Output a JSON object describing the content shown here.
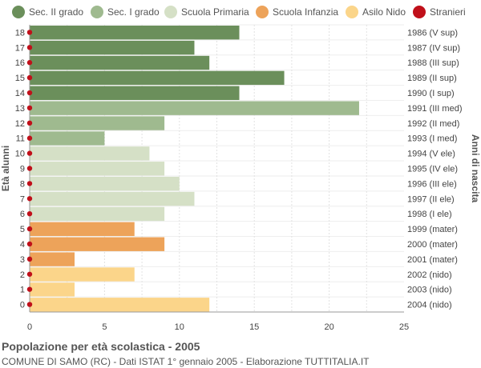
{
  "legend": [
    {
      "label": "Sec. II grado",
      "color": "#6b8f5b"
    },
    {
      "label": "Sec. I grado",
      "color": "#9fba8f"
    },
    {
      "label": "Scuola Primaria",
      "color": "#d5e0c6"
    },
    {
      "label": "Scuola Infanzia",
      "color": "#eda35a"
    },
    {
      "label": "Asilo Nido",
      "color": "#fbd58a"
    },
    {
      "label": "Stranieri",
      "color": "#c0101a"
    }
  ],
  "footer": {
    "title": "Popolazione per età scolastica - 2005",
    "subtitle": "COMUNE DI SAMO (RC) - Dati ISTAT 1° gennaio 2005 - Elaborazione TUTTITALIA.IT"
  },
  "chart_data": {
    "type": "bar",
    "orientation": "horizontal",
    "ylabel": "Età alunni",
    "ylabel_right": "Anni di nascita",
    "xlim": [
      0,
      25
    ],
    "xticks": [
      0,
      5,
      10,
      15,
      20,
      25
    ],
    "grid": true,
    "legend_position": "top",
    "categories": [
      "18",
      "17",
      "16",
      "15",
      "14",
      "13",
      "12",
      "11",
      "10",
      "9",
      "8",
      "7",
      "6",
      "5",
      "4",
      "3",
      "2",
      "1",
      "0"
    ],
    "birth_years": [
      "1986 (V sup)",
      "1987 (IV sup)",
      "1988 (III sup)",
      "1989 (II sup)",
      "1990 (I sup)",
      "1991 (III med)",
      "1992 (II med)",
      "1993 (I med)",
      "1994 (V ele)",
      "1995 (IV ele)",
      "1996 (III ele)",
      "1997 (II ele)",
      "1998 (I ele)",
      "1999 (mater)",
      "2000 (mater)",
      "2001 (mater)",
      "2002 (nido)",
      "2003 (nido)",
      "2004 (nido)"
    ],
    "values": [
      14,
      11,
      12,
      17,
      14,
      22,
      9,
      5,
      8,
      9,
      10,
      11,
      9,
      7,
      9,
      3,
      7,
      3,
      12
    ],
    "groups": [
      "Sec. II grado",
      "Sec. II grado",
      "Sec. II grado",
      "Sec. II grado",
      "Sec. II grado",
      "Sec. I grado",
      "Sec. I grado",
      "Sec. I grado",
      "Scuola Primaria",
      "Scuola Primaria",
      "Scuola Primaria",
      "Scuola Primaria",
      "Scuola Primaria",
      "Scuola Infanzia",
      "Scuola Infanzia",
      "Scuola Infanzia",
      "Asilo Nido",
      "Asilo Nido",
      "Asilo Nido"
    ],
    "stranieri": [
      0,
      0,
      0,
      0,
      0,
      0,
      0,
      0,
      0,
      0,
      0,
      0,
      0,
      0,
      0,
      0,
      0,
      0,
      0
    ]
  }
}
